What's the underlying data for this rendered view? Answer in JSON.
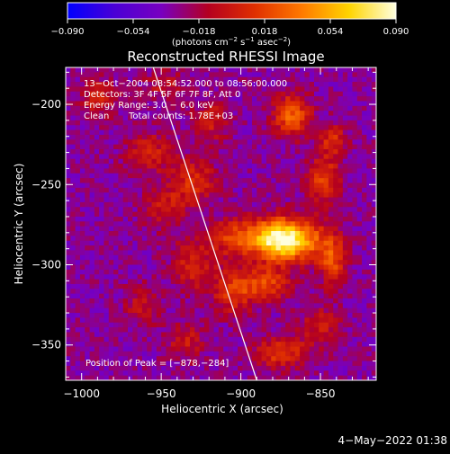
{
  "chart_data": {
    "type": "heatmap",
    "title": "Reconstructed RHESSI Image",
    "xlabel": "Heliocentric X (arcsec)",
    "ylabel": "Heliocentric Y (arcsec)",
    "xlim": [
      -1010,
      -815
    ],
    "ylim": [
      -372,
      -177
    ],
    "x_ticks": [
      -1000,
      -950,
      -900,
      -850
    ],
    "x_tick_labels": [
      "−1000",
      "−950",
      "−900",
      "−850"
    ],
    "y_ticks": [
      -200,
      -250,
      -300,
      -350
    ],
    "y_tick_labels": [
      "−200",
      "−250",
      "−300",
      "−350"
    ],
    "annotations": {
      "time_range": "13−Oct−2004 08:54:52.000 to 08:56:00.000",
      "detectors": "Detectors: 3F 4F 5F 6F 7F 8F, Att 0",
      "energy": "Energy Range: 3.0 − 6.0 keV",
      "clean": "Clean",
      "total_counts": "Total counts: 1.78E+03",
      "peak": "Position of Peak = [−878,−284]"
    },
    "peak": [
      -878,
      -284
    ],
    "limb_line": {
      "x": [
        -955,
        -890
      ],
      "y": [
        -177,
        -372
      ]
    },
    "colorbar": {
      "range": [
        -0.09,
        0.09
      ],
      "tick_labels": [
        "−0.090",
        "−0.054",
        "−0.018",
        "0.018",
        "0.054",
        "0.090"
      ],
      "label_parts": [
        "(photons cm",
        "−2",
        " s",
        "−1",
        " asec",
        "−2",
        ")"
      ],
      "colors": [
        "#0000ff",
        "#4a00d6",
        "#7800c0",
        "#b40020",
        "#e03000",
        "#ff7a00",
        "#ffd400",
        "#ffffe0"
      ]
    },
    "sources": [
      {
        "x": -878,
        "y": -284,
        "amp": 0.09,
        "sx": 12,
        "sy": 9
      },
      {
        "x": -864,
        "y": -285,
        "amp": 0.06,
        "sx": 14,
        "sy": 9
      },
      {
        "x": -905,
        "y": -283,
        "amp": 0.045,
        "sx": 10,
        "sy": 8
      },
      {
        "x": -848,
        "y": -247,
        "amp": 0.048,
        "sx": 7,
        "sy": 11
      },
      {
        "x": -868,
        "y": -207,
        "amp": 0.062,
        "sx": 8,
        "sy": 9
      },
      {
        "x": -842,
        "y": -222,
        "amp": 0.04,
        "sx": 6,
        "sy": 7
      },
      {
        "x": -842,
        "y": -298,
        "amp": 0.05,
        "sx": 6,
        "sy": 11
      },
      {
        "x": -884,
        "y": -312,
        "amp": 0.05,
        "sx": 10,
        "sy": 7
      },
      {
        "x": -905,
        "y": -316,
        "amp": 0.045,
        "sx": 9,
        "sy": 10
      },
      {
        "x": -930,
        "y": -300,
        "amp": 0.035,
        "sx": 9,
        "sy": 12
      },
      {
        "x": -930,
        "y": -248,
        "amp": 0.04,
        "sx": 10,
        "sy": 10
      },
      {
        "x": -948,
        "y": -265,
        "amp": 0.03,
        "sx": 9,
        "sy": 9
      },
      {
        "x": -958,
        "y": -230,
        "amp": 0.035,
        "sx": 10,
        "sy": 9
      },
      {
        "x": -918,
        "y": -210,
        "amp": 0.032,
        "sx": 8,
        "sy": 9
      },
      {
        "x": -875,
        "y": -355,
        "amp": 0.045,
        "sx": 12,
        "sy": 7
      },
      {
        "x": -935,
        "y": -348,
        "amp": 0.03,
        "sx": 8,
        "sy": 8
      },
      {
        "x": -962,
        "y": -325,
        "amp": 0.025,
        "sx": 8,
        "sy": 9
      },
      {
        "x": -990,
        "y": -196,
        "amp": 0.035,
        "sx": 8,
        "sy": 8
      },
      {
        "x": -948,
        "y": -188,
        "amp": 0.025,
        "sx": 8,
        "sy": 7
      },
      {
        "x": -850,
        "y": -338,
        "amp": 0.03,
        "sx": 9,
        "sy": 8
      }
    ],
    "base_level": -0.032
  },
  "timestamp": "4−May−2022 01:38"
}
